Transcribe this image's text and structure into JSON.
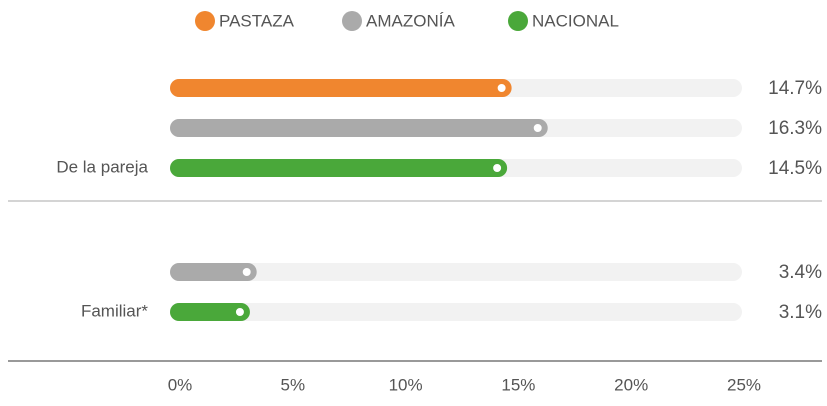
{
  "chart_data": {
    "type": "bar",
    "orientation": "horizontal",
    "categories": [
      "De la pareja",
      "Familiar*"
    ],
    "series": [
      {
        "name": "PASTAZA",
        "color": "#f0862f",
        "values": [
          14.7,
          null
        ],
        "value_labels": [
          "14.7%",
          null
        ]
      },
      {
        "name": "AMAZONÍA",
        "color": "#aaaaaa",
        "values": [
          16.3,
          3.4
        ],
        "value_labels": [
          "16.3%",
          "3.4%"
        ]
      },
      {
        "name": "NACIONAL",
        "color": "#4aa83a",
        "values": [
          14.5,
          3.1
        ],
        "value_labels": [
          "14.5%",
          "3.1%"
        ]
      }
    ],
    "xlim": [
      0,
      25
    ],
    "xticks": [
      {
        "value": 0,
        "label": "0%"
      },
      {
        "value": 5,
        "label": "5%"
      },
      {
        "value": 10,
        "label": "10%"
      },
      {
        "value": 15,
        "label": "15%"
      },
      {
        "value": 20,
        "label": "20%"
      },
      {
        "value": 25,
        "label": "25%"
      }
    ],
    "legend": "top"
  }
}
